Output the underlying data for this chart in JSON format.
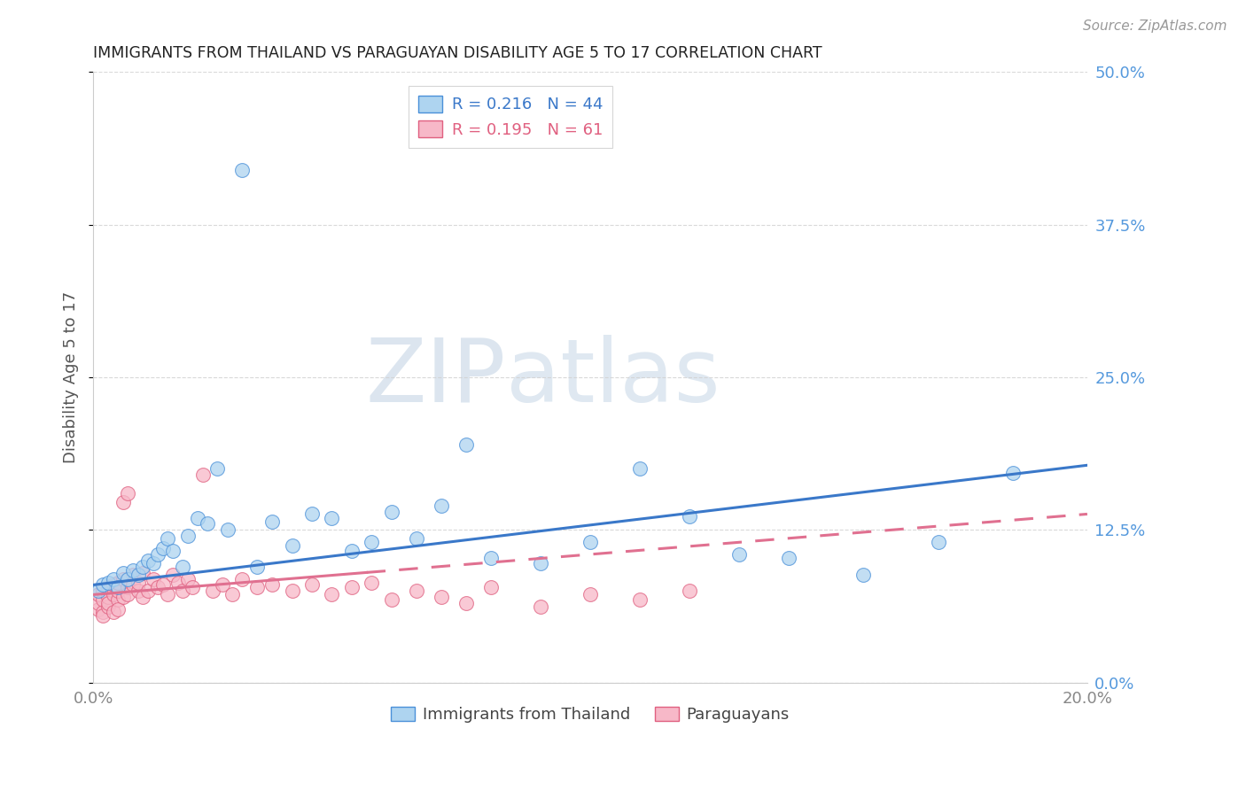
{
  "title": "IMMIGRANTS FROM THAILAND VS PARAGUAYAN DISABILITY AGE 5 TO 17 CORRELATION CHART",
  "source": "Source: ZipAtlas.com",
  "ylabel": "Disability Age 5 to 17",
  "xlim": [
    0.0,
    0.2
  ],
  "ylim": [
    0.0,
    0.5
  ],
  "r_thailand": 0.216,
  "n_thailand": 44,
  "r_paraguay": 0.195,
  "n_paraguay": 61,
  "color_thailand_fill": "#aed4f0",
  "color_thailand_edge": "#4a90d9",
  "color_paraguay_fill": "#f7b8c8",
  "color_paraguay_edge": "#e06080",
  "color_trend_thailand": "#3a78c9",
  "color_trend_paraguay": "#e07090",
  "watermark_zip": "#c8d8e8",
  "watermark_atlas": "#b8cce0",
  "background_color": "#ffffff",
  "grid_color": "#d0d0d0",
  "thailand_x": [
    0.001,
    0.002,
    0.003,
    0.004,
    0.005,
    0.006,
    0.007,
    0.008,
    0.009,
    0.01,
    0.011,
    0.012,
    0.013,
    0.014,
    0.015,
    0.016,
    0.018,
    0.019,
    0.021,
    0.023,
    0.025,
    0.027,
    0.03,
    0.033,
    0.036,
    0.04,
    0.044,
    0.048,
    0.052,
    0.056,
    0.06,
    0.065,
    0.07,
    0.075,
    0.08,
    0.09,
    0.1,
    0.11,
    0.12,
    0.13,
    0.14,
    0.155,
    0.17,
    0.185
  ],
  "thailand_y": [
    0.075,
    0.08,
    0.082,
    0.085,
    0.078,
    0.09,
    0.085,
    0.092,
    0.088,
    0.095,
    0.1,
    0.098,
    0.105,
    0.11,
    0.118,
    0.108,
    0.095,
    0.12,
    0.135,
    0.13,
    0.175,
    0.125,
    0.42,
    0.095,
    0.132,
    0.112,
    0.138,
    0.135,
    0.108,
    0.115,
    0.14,
    0.118,
    0.145,
    0.195,
    0.102,
    0.098,
    0.115,
    0.175,
    0.136,
    0.105,
    0.102,
    0.088,
    0.115,
    0.172
  ],
  "paraguay_x": [
    0.001,
    0.001,
    0.001,
    0.002,
    0.002,
    0.002,
    0.002,
    0.003,
    0.003,
    0.003,
    0.003,
    0.004,
    0.004,
    0.004,
    0.005,
    0.005,
    0.005,
    0.005,
    0.006,
    0.006,
    0.006,
    0.007,
    0.007,
    0.007,
    0.008,
    0.008,
    0.009,
    0.009,
    0.01,
    0.01,
    0.011,
    0.012,
    0.013,
    0.014,
    0.015,
    0.016,
    0.017,
    0.018,
    0.019,
    0.02,
    0.022,
    0.024,
    0.026,
    0.028,
    0.03,
    0.033,
    0.036,
    0.04,
    0.044,
    0.048,
    0.052,
    0.056,
    0.06,
    0.065,
    0.07,
    0.075,
    0.08,
    0.09,
    0.1,
    0.11,
    0.12
  ],
  "paraguay_y": [
    0.06,
    0.065,
    0.072,
    0.058,
    0.068,
    0.075,
    0.055,
    0.062,
    0.07,
    0.078,
    0.065,
    0.072,
    0.058,
    0.08,
    0.068,
    0.075,
    0.06,
    0.082,
    0.07,
    0.085,
    0.148,
    0.155,
    0.078,
    0.072,
    0.08,
    0.088,
    0.075,
    0.082,
    0.07,
    0.09,
    0.075,
    0.085,
    0.078,
    0.08,
    0.072,
    0.088,
    0.082,
    0.075,
    0.085,
    0.078,
    0.17,
    0.075,
    0.08,
    0.072,
    0.085,
    0.078,
    0.08,
    0.075,
    0.08,
    0.072,
    0.078,
    0.082,
    0.068,
    0.075,
    0.07,
    0.065,
    0.078,
    0.062,
    0.072,
    0.068,
    0.075
  ],
  "trend_thailand_y0": 0.08,
  "trend_thailand_y1": 0.178,
  "trend_paraguay_y0": 0.072,
  "trend_paraguay_y1": 0.138
}
